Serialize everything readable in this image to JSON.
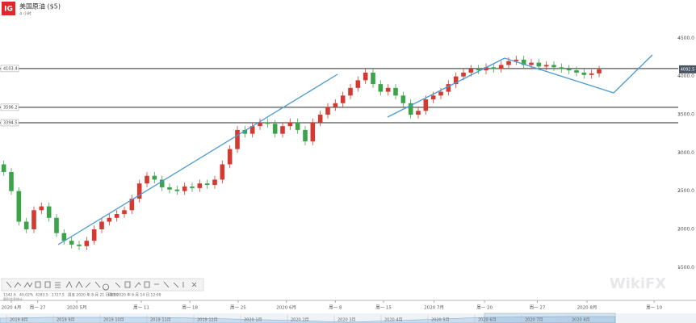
{
  "header": {
    "logo": "IG",
    "title": "美国原油 ($5)",
    "subtitle": "4 小时"
  },
  "chart_data": {
    "type": "candlestick",
    "up_color": "#d23a32",
    "down_color": "#3ba34a",
    "open": [
      2850,
      2750,
      2500,
      2100,
      2000,
      2250,
      2300,
      2150,
      1950,
      1850,
      1800,
      1780,
      1850,
      2000,
      2100,
      2150,
      2200,
      2250,
      2400,
      2600,
      2700,
      2650,
      2550,
      2520,
      2500,
      2560,
      2540,
      2600,
      2580,
      2650,
      2850,
      3050,
      3300,
      3250,
      3350,
      3400,
      3380,
      3250,
      3350,
      3400,
      3300,
      3150,
      3400,
      3500,
      3600,
      3650,
      3750,
      3850,
      3950,
      4050,
      3900,
      3800,
      3850,
      3750,
      3650,
      3500,
      3550,
      3700,
      3750,
      3800,
      3900,
      4000,
      4050,
      4100,
      4080,
      4120,
      4100,
      4150,
      4200,
      4220,
      4150,
      4180,
      4130,
      4150,
      4120,
      4100,
      4080,
      4050,
      4020,
      4040
    ],
    "high": [
      2900,
      2800,
      2550,
      2150,
      2300,
      2350,
      2350,
      2200,
      2000,
      1900,
      1850,
      1900,
      2050,
      2150,
      2200,
      2250,
      2300,
      2450,
      2650,
      2750,
      2750,
      2700,
      2600,
      2570,
      2610,
      2610,
      2650,
      2650,
      2700,
      2900,
      3100,
      3350,
      3350,
      3400,
      3450,
      3450,
      3430,
      3400,
      3450,
      3450,
      3350,
      3450,
      3550,
      3650,
      3700,
      3800,
      3900,
      4000,
      4100,
      4100,
      3950,
      3900,
      3900,
      3800,
      3700,
      3600,
      3750,
      3800,
      3850,
      3950,
      4050,
      4100,
      4150,
      4150,
      4170,
      4170,
      4200,
      4250,
      4270,
      4270,
      4230,
      4230,
      4200,
      4200,
      4170,
      4150,
      4130,
      4100,
      4090,
      4140
    ],
    "low": [
      2700,
      2450,
      2050,
      1950,
      1950,
      2200,
      2100,
      1900,
      1800,
      1750,
      1730,
      1730,
      1800,
      1950,
      2050,
      2100,
      2150,
      2200,
      2350,
      2550,
      2600,
      2500,
      2470,
      2450,
      2450,
      2490,
      2490,
      2530,
      2530,
      2600,
      2800,
      3000,
      3200,
      3200,
      3300,
      3330,
      3200,
      3200,
      3300,
      3250,
      3100,
      3100,
      3350,
      3450,
      3550,
      3600,
      3700,
      3800,
      3900,
      3850,
      3750,
      3750,
      3700,
      3600,
      3450,
      3450,
      3500,
      3650,
      3700,
      3750,
      3850,
      3950,
      4000,
      4030,
      4030,
      4050,
      4050,
      4100,
      4150,
      4100,
      4100,
      4080,
      4080,
      4070,
      4050,
      4030,
      4000,
      3970,
      3970,
      3990
    ],
    "close": [
      2750,
      2500,
      2100,
      2000,
      2250,
      2300,
      2150,
      1950,
      1850,
      1800,
      1780,
      1850,
      2000,
      2100,
      2150,
      2200,
      2250,
      2400,
      2600,
      2700,
      2650,
      2550,
      2520,
      2500,
      2560,
      2540,
      2600,
      2580,
      2650,
      2850,
      3050,
      3300,
      3250,
      3350,
      3400,
      3380,
      3250,
      3350,
      3400,
      3300,
      3150,
      3400,
      3500,
      3600,
      3650,
      3750,
      3850,
      3950,
      4050,
      3900,
      3800,
      3850,
      3750,
      3650,
      3500,
      3550,
      3700,
      3750,
      3800,
      3900,
      4000,
      4050,
      4100,
      4080,
      4120,
      4100,
      4150,
      4200,
      4220,
      4150,
      4180,
      4130,
      4150,
      4120,
      4100,
      4080,
      4050,
      4020,
      4040,
      4092.5
    ],
    "last_price": 4092.5,
    "levels": [
      4103.4,
      3596.2,
      3394.5
    ],
    "ylim": [
      1070,
      5000
    ],
    "yticks": [
      {
        "value": 4500,
        "label": "4500.0"
      },
      {
        "value": 4000,
        "label": "4000.0"
      },
      {
        "value": 3500,
        "label": "3500.0"
      },
      {
        "value": 3000,
        "label": "3000.0"
      },
      {
        "value": 2500,
        "label": "2500.0"
      },
      {
        "value": 2000,
        "label": "2000.0"
      },
      {
        "value": 1500,
        "label": "1500.0"
      }
    ],
    "xlim": [
      0,
      90
    ],
    "xticks": [
      {
        "value": 1.5,
        "label": "2020 4月"
      },
      {
        "value": 5,
        "label": "周一 27"
      },
      {
        "value": 10.2,
        "label": "2020 5月"
      },
      {
        "value": 18.75,
        "label": "周一 11"
      },
      {
        "value": 25.2,
        "label": "周一 18"
      },
      {
        "value": 31.6,
        "label": "周一 25"
      },
      {
        "value": 38,
        "label": "2020 6月"
      },
      {
        "value": 44.5,
        "label": "周一 8"
      },
      {
        "value": 50.9,
        "label": "周一 15"
      },
      {
        "value": 57.6,
        "label": "2020 7月"
      },
      {
        "value": 64.3,
        "label": "周一 20"
      },
      {
        "value": 71.3,
        "label": "周一 27"
      },
      {
        "value": 77.9,
        "label": "2020 8月"
      },
      {
        "value": 86.8,
        "label": "周一 10"
      }
    ]
  },
  "info": {
    "items": [
      "1342.6",
      "40.02%",
      "4283.5",
      "1727.5",
      "周五 2020 年 8 月 21 日 8:00",
      "周四 2020 年 6 月 14 日 12:00"
    ],
    "caption": "图形信息统计"
  },
  "navigator": [
    "2019 8月",
    "2019 9月",
    "2019 10月",
    "2019 11月",
    "2019 12月",
    "2020 1月",
    "2020 2月",
    "2020 3月",
    "2020 4月",
    "2020 5月",
    "2020 6月",
    "2020 7月",
    "2020 8月"
  ],
  "watermark": "WikiFX"
}
